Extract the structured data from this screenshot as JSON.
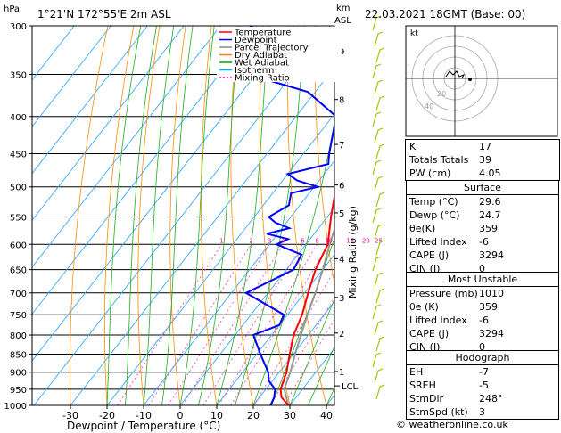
{
  "header": {
    "hpa_label": "hPa",
    "location": "1°21'N 172°55'E  2m ASL",
    "km_label": "km",
    "asl_label": "ASL",
    "datetime": "22.03.2021  18GMT  (Base: 00)"
  },
  "legend": {
    "items": [
      {
        "label": "Temperature",
        "color": "#ff0000"
      },
      {
        "label": "Dewpoint",
        "color": "#0000ff"
      },
      {
        "label": "Parcel Trajectory",
        "color": "#888888"
      },
      {
        "label": "Dry Adiabat",
        "color": "#ff8000"
      },
      {
        "label": "Wet Adiabat",
        "color": "#00aa00"
      },
      {
        "label": "Isotherm",
        "color": "#00aaff"
      },
      {
        "label": "Mixing Ratio",
        "color": "#ff00aa"
      }
    ]
  },
  "chart_data": {
    "type": "skew-t",
    "xlabel": "Dewpoint / Temperature (°C)",
    "ylabel_right": "Mixing Ratio (g/kg)",
    "pressure_levels": [
      "300",
      "350",
      "400",
      "450",
      "500",
      "550",
      "600",
      "650",
      "700",
      "750",
      "800",
      "850",
      "900",
      "950",
      "1000"
    ],
    "temp_ticks": [
      "-30",
      "-20",
      "-10",
      "0",
      "10",
      "20",
      "30",
      "40"
    ],
    "km_ticks": [
      {
        "p": 325,
        "label": "9"
      },
      {
        "p": 379,
        "label": "8"
      },
      {
        "p": 437,
        "label": "7"
      },
      {
        "p": 497,
        "label": "6"
      },
      {
        "p": 543,
        "label": "5"
      },
      {
        "p": 628,
        "label": "4"
      },
      {
        "p": 710,
        "label": "3"
      },
      {
        "p": 795,
        "label": "2"
      },
      {
        "p": 898,
        "label": "1"
      }
    ],
    "lcl": {
      "p": 940,
      "label": "LCL"
    },
    "mixing_ratio_labels": [
      {
        "w": 1,
        "label": "1"
      },
      {
        "w": 2,
        "label": "2"
      },
      {
        "w": 3,
        "label": "3"
      },
      {
        "w": 4,
        "label": "4"
      },
      {
        "w": 6,
        "label": "6"
      },
      {
        "w": 8,
        "label": "8"
      },
      {
        "w": 10,
        "label": "10"
      },
      {
        "w": 15,
        "label": "15"
      },
      {
        "w": 20,
        "label": "20"
      },
      {
        "w": 25,
        "label": "25"
      }
    ],
    "temperature": [
      [
        1000,
        29.6
      ],
      [
        975,
        26
      ],
      [
        950,
        24
      ],
      [
        925,
        23
      ],
      [
        900,
        22
      ],
      [
        850,
        19
      ],
      [
        800,
        16
      ],
      [
        750,
        14
      ],
      [
        700,
        11
      ],
      [
        650,
        8
      ],
      [
        600,
        6
      ],
      [
        550,
        1
      ],
      [
        500,
        -4
      ],
      [
        450,
        -11
      ],
      [
        400,
        -18
      ],
      [
        350,
        -27
      ],
      [
        300,
        -37
      ]
    ],
    "dewpoint": [
      [
        1000,
        24.7
      ],
      [
        975,
        24
      ],
      [
        950,
        22.5
      ],
      [
        925,
        19
      ],
      [
        900,
        17
      ],
      [
        850,
        11
      ],
      [
        800,
        5
      ],
      [
        775,
        10
      ],
      [
        750,
        9
      ],
      [
        700,
        -6
      ],
      [
        650,
        2
      ],
      [
        620,
        1
      ],
      [
        600,
        -8
      ],
      [
        590,
        -6
      ],
      [
        580,
        -13
      ],
      [
        570,
        -8
      ],
      [
        560,
        -13
      ],
      [
        550,
        -16
      ],
      [
        530,
        -13
      ],
      [
        510,
        -15
      ],
      [
        500,
        -9
      ],
      [
        490,
        -16
      ],
      [
        480,
        -20
      ],
      [
        465,
        -11
      ],
      [
        450,
        -13
      ],
      [
        400,
        -19
      ],
      [
        370,
        -32
      ],
      [
        350,
        -52
      ],
      [
        320,
        -46
      ],
      [
        300,
        -62
      ]
    ],
    "parcel": [
      [
        1000,
        29.6
      ],
      [
        950,
        25
      ],
      [
        900,
        23
      ],
      [
        850,
        20.5
      ],
      [
        800,
        18
      ],
      [
        750,
        15.5
      ],
      [
        700,
        13
      ],
      [
        650,
        10
      ],
      [
        600,
        6.5
      ],
      [
        550,
        3
      ],
      [
        500,
        -1
      ],
      [
        450,
        -6
      ],
      [
        400,
        -13
      ],
      [
        350,
        -21
      ],
      [
        300,
        -31
      ]
    ]
  },
  "hodograph": {
    "label": "kt",
    "ring_labels": [
      "20",
      "40"
    ],
    "wind": {
      "dir_deg": 248,
      "speed_kt": 3
    }
  },
  "indices": [
    {
      "key": "K",
      "value": "17"
    },
    {
      "key": "Totals Totals",
      "value": "39"
    },
    {
      "key": "PW (cm)",
      "value": "4.05"
    }
  ],
  "surface": {
    "title": "Surface",
    "rows": [
      {
        "key": "Temp (°C)",
        "value": "29.6"
      },
      {
        "key": "Dewp (°C)",
        "value": "24.7"
      },
      {
        "key": "θe(K)",
        "value": "359"
      },
      {
        "key": "Lifted Index",
        "value": "-6"
      },
      {
        "key": "CAPE (J)",
        "value": "3294"
      },
      {
        "key": "CIN (J)",
        "value": "0"
      }
    ]
  },
  "unstable": {
    "title": "Most Unstable",
    "rows": [
      {
        "key": "Pressure (mb)",
        "value": "1010"
      },
      {
        "key": "θe (K)",
        "value": "359"
      },
      {
        "key": "Lifted Index",
        "value": "-6"
      },
      {
        "key": "CAPE (J)",
        "value": "3294"
      },
      {
        "key": "CIN (J)",
        "value": "0"
      }
    ]
  },
  "hodo_table": {
    "title": "Hodograph",
    "rows": [
      {
        "key": "EH",
        "value": "-7"
      },
      {
        "key": "SREH",
        "value": "-5"
      },
      {
        "key": "StmDir",
        "value": "248°"
      },
      {
        "key": "StmSpd (kt)",
        "value": "3"
      }
    ]
  },
  "copyright": "© weatheronline.co.uk"
}
